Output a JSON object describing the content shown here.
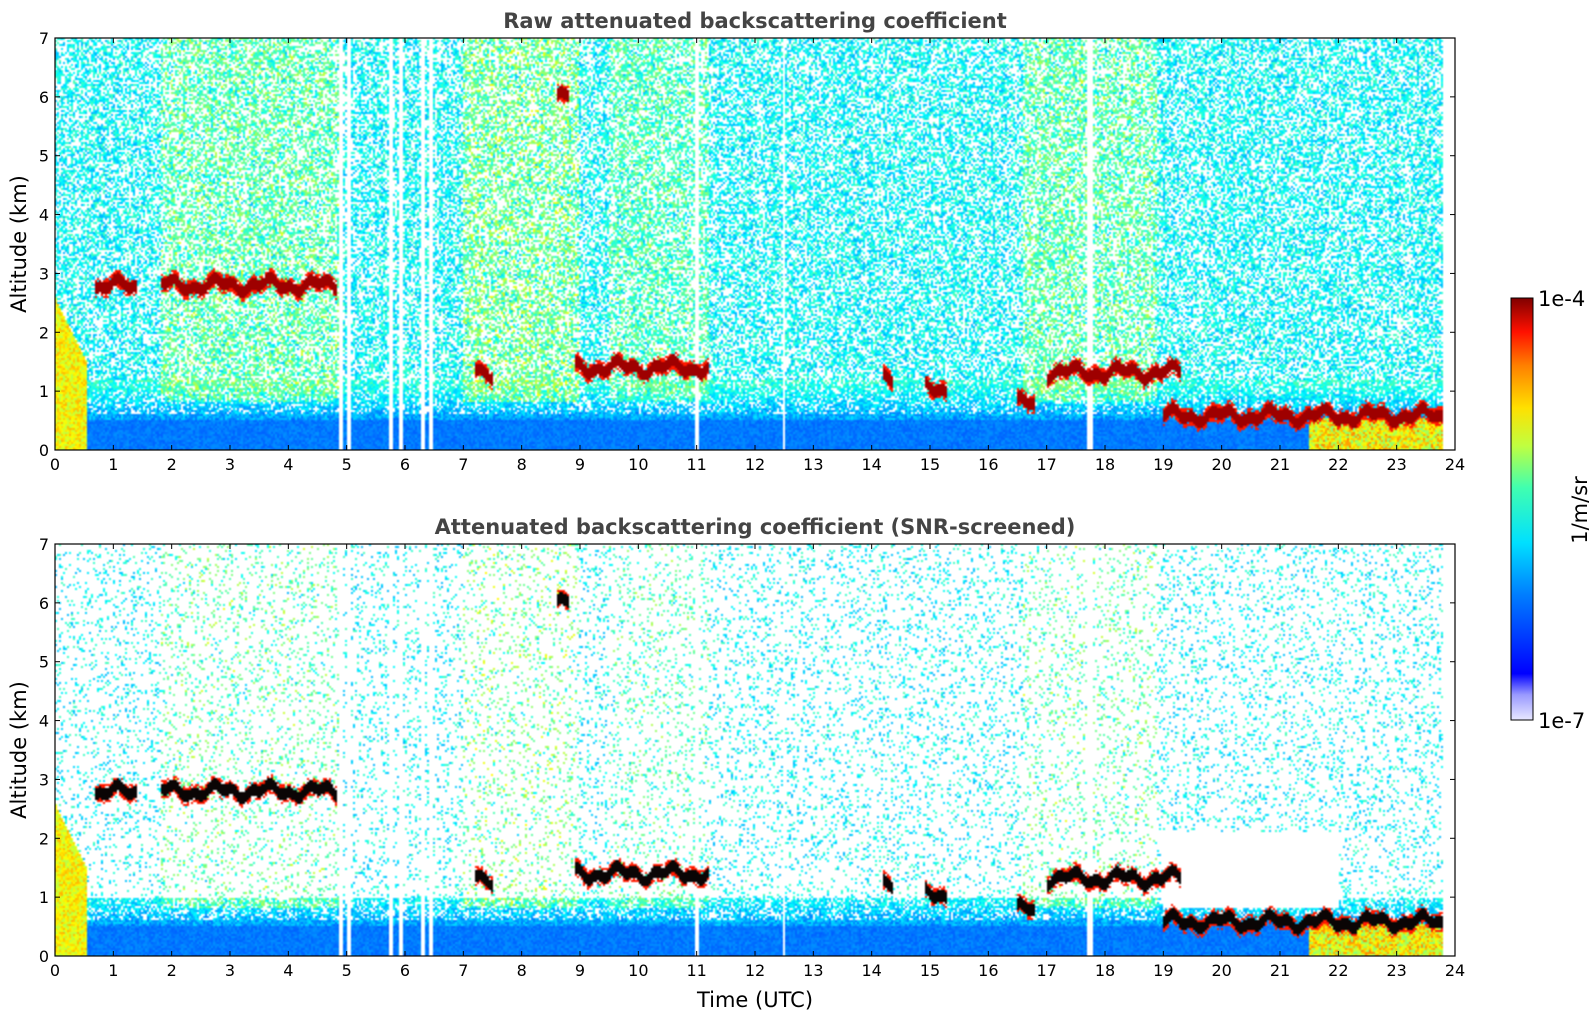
{
  "chart_data": [
    {
      "type": "heatmap",
      "title": "Raw attenuated backscattering coefficient",
      "ylabel": "Altitude (km)",
      "xlabel": "",
      "xlim": [
        0,
        24
      ],
      "ylim": [
        0,
        7
      ],
      "x_ticks": [
        "0",
        "1",
        "2",
        "3",
        "4",
        "5",
        "6",
        "7",
        "8",
        "9",
        "10",
        "11",
        "12",
        "13",
        "14",
        "15",
        "16",
        "17",
        "18",
        "19",
        "20",
        "21",
        "22",
        "23",
        "24"
      ],
      "y_ticks": [
        "0",
        "1",
        "2",
        "3",
        "4",
        "5",
        "6",
        "7"
      ],
      "screened": false,
      "cloud_layers": [
        {
          "t_start": 0.7,
          "t_end": 1.4,
          "alt": 2.78
        },
        {
          "t_start": 1.8,
          "t_end": 4.85,
          "alt": 2.8
        },
        {
          "t_start": 7.2,
          "t_end": 7.5,
          "alt": 1.32
        },
        {
          "t_start": 8.9,
          "t_end": 11.2,
          "alt": 1.4
        },
        {
          "t_start": 14.2,
          "t_end": 14.35,
          "alt": 1.25
        },
        {
          "t_start": 14.9,
          "t_end": 15.3,
          "alt": 1.05
        },
        {
          "t_start": 16.5,
          "t_end": 16.8,
          "alt": 0.78
        },
        {
          "t_start": 17.0,
          "t_end": 19.3,
          "alt": 1.32
        },
        {
          "t_start": 19.0,
          "t_end": 23.8,
          "alt": 0.58
        },
        {
          "t_start": 8.6,
          "t_end": 8.8,
          "alt": 6.0
        }
      ]
    },
    {
      "type": "heatmap",
      "title": "Attenuated backscattering coefficient (SNR-screened)",
      "ylabel": "Altitude (km)",
      "xlabel": "Time (UTC)",
      "xlim": [
        0,
        24
      ],
      "ylim": [
        0,
        7
      ],
      "x_ticks": [
        "0",
        "1",
        "2",
        "3",
        "4",
        "5",
        "6",
        "7",
        "8",
        "9",
        "10",
        "11",
        "12",
        "13",
        "14",
        "15",
        "16",
        "17",
        "18",
        "19",
        "20",
        "21",
        "22",
        "23",
        "24"
      ],
      "y_ticks": [
        "0",
        "1",
        "2",
        "3",
        "4",
        "5",
        "6",
        "7"
      ],
      "screened": true,
      "cloud_layers": [
        {
          "t_start": 0.7,
          "t_end": 1.4,
          "alt": 2.78
        },
        {
          "t_start": 1.8,
          "t_end": 4.85,
          "alt": 2.8
        },
        {
          "t_start": 7.2,
          "t_end": 7.5,
          "alt": 1.32
        },
        {
          "t_start": 8.9,
          "t_end": 11.2,
          "alt": 1.4
        },
        {
          "t_start": 14.2,
          "t_end": 14.35,
          "alt": 1.25
        },
        {
          "t_start": 14.9,
          "t_end": 15.3,
          "alt": 1.05
        },
        {
          "t_start": 16.5,
          "t_end": 16.8,
          "alt": 0.78
        },
        {
          "t_start": 17.0,
          "t_end": 19.3,
          "alt": 1.32
        },
        {
          "t_start": 19.0,
          "t_end": 23.8,
          "alt": 0.58
        },
        {
          "t_start": 8.6,
          "t_end": 8.8,
          "alt": 6.0
        }
      ]
    }
  ],
  "colorbar": {
    "label": "1/m/sr",
    "max_label": "1e-4",
    "min_label": "1e-7",
    "colormap": "jet"
  }
}
